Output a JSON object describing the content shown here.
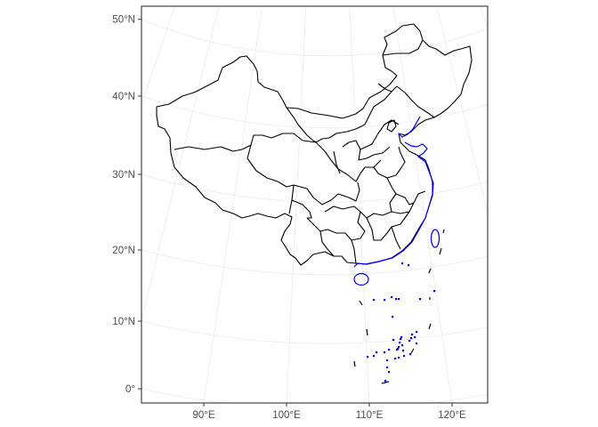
{
  "map": {
    "y_axis": {
      "ticks": [
        {
          "lat": 50,
          "label": "50°N"
        },
        {
          "lat": 40,
          "label": "40°N"
        },
        {
          "lat": 30,
          "label": "30°N"
        },
        {
          "lat": 20,
          "label": "20°N"
        },
        {
          "lat": 10,
          "label": "10°N"
        },
        {
          "lat": 0,
          "label": "0°"
        }
      ]
    },
    "x_axis": {
      "ticks": [
        {
          "lon": 90,
          "label": "90°E"
        },
        {
          "lon": 100,
          "label": "100°E"
        },
        {
          "lon": 110,
          "label": "110°E"
        },
        {
          "lon": 120,
          "label": "120°E"
        }
      ]
    },
    "colors": {
      "boundary": "#000000",
      "coastline": "#0000FF",
      "graticule": "#EBEBEB",
      "panel_border": "#333333",
      "tick_text": "#4D4D4D"
    }
  }
}
